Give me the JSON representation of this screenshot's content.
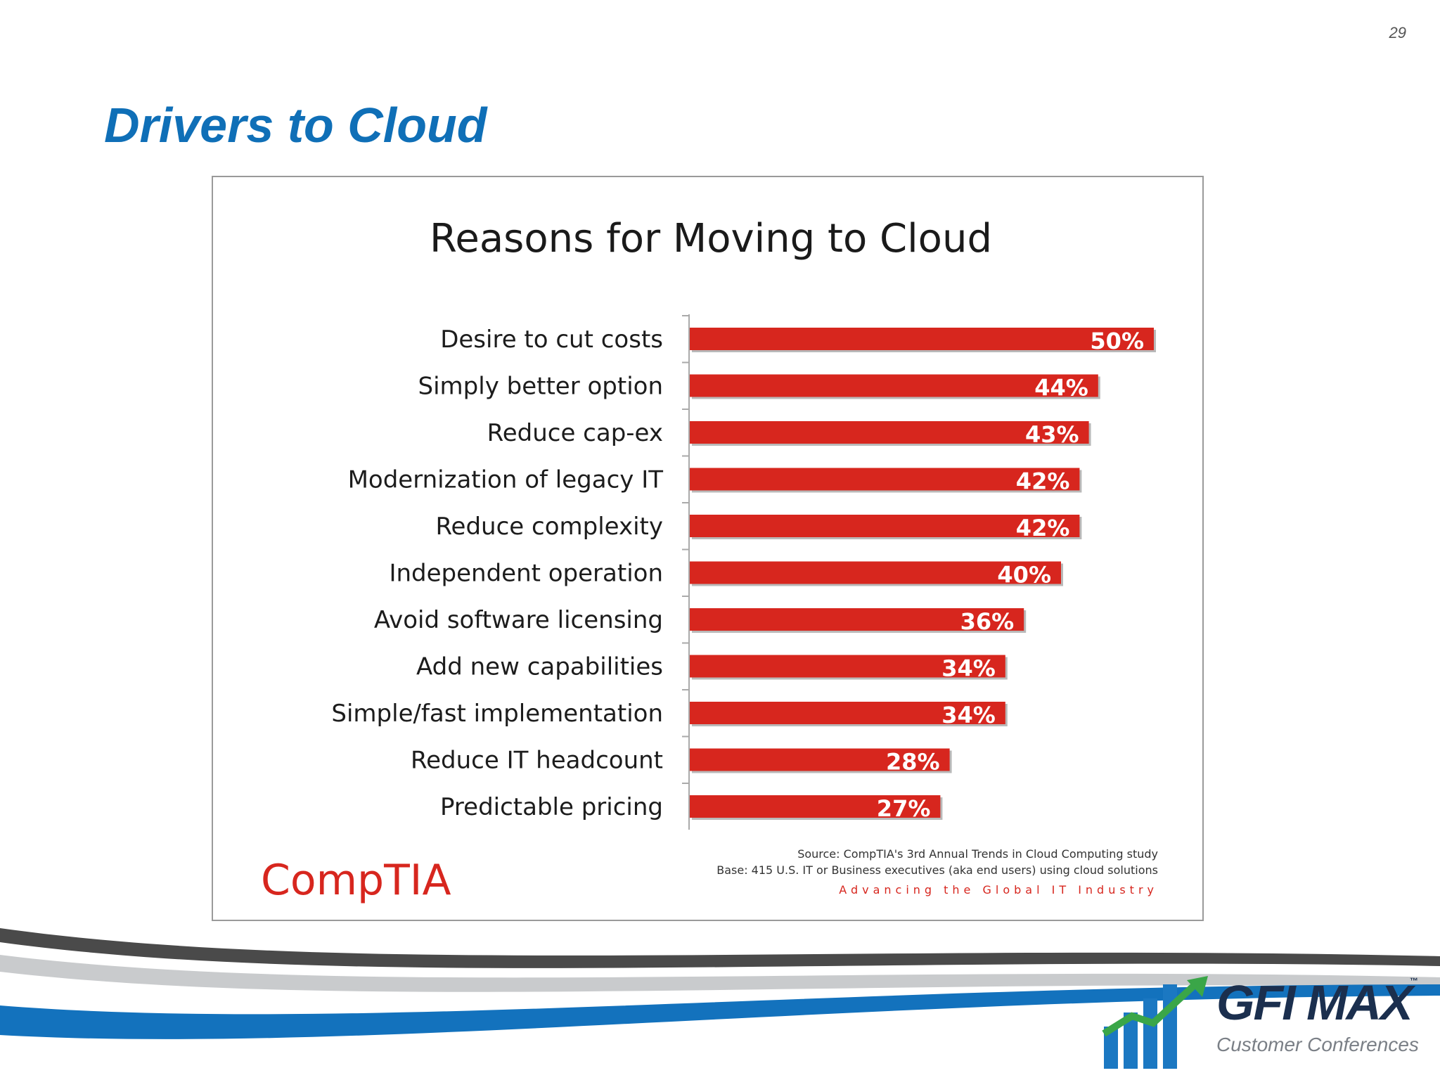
{
  "page": {
    "number": "29",
    "title": "Drivers to Cloud"
  },
  "colors": {
    "bar": "#d7261e",
    "title": "#0f6fb7",
    "accent_blue": "#1372bd",
    "logo_green": "#3aa648"
  },
  "chart_data": {
    "type": "bar",
    "orientation": "horizontal",
    "title": "Reasons for Moving to Cloud",
    "categories": [
      "Desire to cut costs",
      "Simply better option",
      "Reduce cap-ex",
      "Modernization of legacy IT",
      "Reduce complexity",
      "Independent operation",
      "Avoid software licensing",
      "Add new capabilities",
      "Simple/fast implementation",
      "Reduce IT headcount",
      "Predictable pricing"
    ],
    "values": [
      50,
      44,
      43,
      42,
      42,
      40,
      36,
      34,
      34,
      28,
      27
    ],
    "value_labels": [
      "50%",
      "44%",
      "43%",
      "42%",
      "42%",
      "40%",
      "36%",
      "34%",
      "34%",
      "28%",
      "27%"
    ],
    "xlim": [
      0,
      50
    ],
    "grid": false,
    "legend": "none"
  },
  "source": {
    "line1": "Source: CompTIA's 3rd Annual Trends in Cloud Computing study",
    "line2": "Base: 415 U.S. IT or Business executives (aka end users) using cloud solutions",
    "tagline": "Advancing the Global IT Industry",
    "brand": "CompTIA"
  },
  "logo": {
    "name": "GFI MAX",
    "tm": "™",
    "subtitle": "Customer Conferences"
  }
}
